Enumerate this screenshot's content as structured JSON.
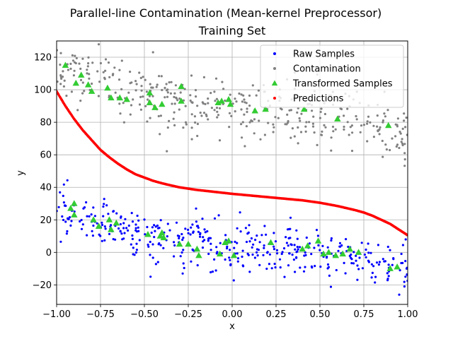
{
  "chart_data": {
    "type": "scatter",
    "title": "Parallel-line Contamination (Mean-kernel Preprocessor)",
    "subtitle": "Training Set",
    "xlabel": "x",
    "ylabel": "y",
    "xlim": [
      -1.0,
      1.0
    ],
    "ylim": [
      -32,
      130
    ],
    "xticks": [
      -1.0,
      -0.75,
      -0.5,
      -0.25,
      0.0,
      0.25,
      0.5,
      0.75,
      1.0
    ],
    "xtick_labels": [
      "−1.00",
      "−0.75",
      "−0.50",
      "−0.25",
      "0.00",
      "0.25",
      "0.50",
      "0.75",
      "1.00"
    ],
    "yticks": [
      -20,
      0,
      20,
      40,
      60,
      80,
      100,
      120
    ],
    "ytick_labels": [
      "−20",
      "0",
      "20",
      "40",
      "60",
      "80",
      "100",
      "120"
    ],
    "grid": true,
    "legend_position": "top-right",
    "series": [
      {
        "name": "Raw Samples",
        "color": "#0000ff",
        "marker": "dot",
        "model": {
          "points": 420,
          "trend_x": [
            -1.0,
            -0.75,
            -0.5,
            -0.25,
            0.0,
            0.25,
            0.5,
            0.75,
            1.0
          ],
          "trend_y": [
            26,
            18,
            12,
            7,
            3,
            1,
            -1,
            -4,
            -10
          ],
          "noise_sd": 8
        }
      },
      {
        "name": "Contamination",
        "color": "#808080",
        "marker": "dot",
        "model": {
          "points": 400,
          "trend_x": [
            -1.0,
            -0.75,
            -0.5,
            -0.25,
            0.0,
            0.25,
            0.5,
            0.75,
            1.0
          ],
          "trend_y": [
            115,
            102,
            97,
            92,
            89,
            86,
            84,
            82,
            75
          ],
          "noise_sd": 10
        }
      },
      {
        "name": "Transformed Samples",
        "color": "#33cc33",
        "marker": "triangle",
        "points": [
          {
            "x": -0.95,
            "y": 115
          },
          {
            "x": -0.89,
            "y": 104
          },
          {
            "x": -0.86,
            "y": 109
          },
          {
            "x": -0.82,
            "y": 103
          },
          {
            "x": -0.8,
            "y": 99
          },
          {
            "x": -0.71,
            "y": 101
          },
          {
            "x": -0.69,
            "y": 95
          },
          {
            "x": -0.64,
            "y": 95
          },
          {
            "x": -0.6,
            "y": 94
          },
          {
            "x": -0.47,
            "y": 98
          },
          {
            "x": -0.47,
            "y": 92
          },
          {
            "x": -0.44,
            "y": 89
          },
          {
            "x": -0.4,
            "y": 91
          },
          {
            "x": -0.29,
            "y": 102
          },
          {
            "x": -0.29,
            "y": 93
          },
          {
            "x": -0.08,
            "y": 92
          },
          {
            "x": -0.06,
            "y": 93
          },
          {
            "x": -0.02,
            "y": 94
          },
          {
            "x": -0.01,
            "y": 91
          },
          {
            "x": 0.13,
            "y": 87
          },
          {
            "x": 0.19,
            "y": 88
          },
          {
            "x": 0.41,
            "y": 88
          },
          {
            "x": 0.6,
            "y": 82
          },
          {
            "x": 0.89,
            "y": 78
          },
          {
            "x": -0.92,
            "y": 27
          },
          {
            "x": -0.9,
            "y": 30
          },
          {
            "x": -0.9,
            "y": 23
          },
          {
            "x": -0.79,
            "y": 20
          },
          {
            "x": -0.76,
            "y": 16
          },
          {
            "x": -0.7,
            "y": 20
          },
          {
            "x": -0.69,
            "y": 14
          },
          {
            "x": -0.66,
            "y": 18
          },
          {
            "x": -0.48,
            "y": 11
          },
          {
            "x": -0.41,
            "y": 10
          },
          {
            "x": -0.4,
            "y": 12
          },
          {
            "x": -0.39,
            "y": 9
          },
          {
            "x": -0.3,
            "y": 5
          },
          {
            "x": -0.25,
            "y": 5
          },
          {
            "x": -0.2,
            "y": 2
          },
          {
            "x": -0.19,
            "y": -2
          },
          {
            "x": -0.07,
            "y": -1
          },
          {
            "x": -0.04,
            "y": 6
          },
          {
            "x": -0.02,
            "y": 7
          },
          {
            "x": 0.01,
            "y": -2
          },
          {
            "x": 0.22,
            "y": 6
          },
          {
            "x": 0.4,
            "y": 2
          },
          {
            "x": 0.43,
            "y": 4
          },
          {
            "x": 0.49,
            "y": 7
          },
          {
            "x": 0.52,
            "y": -1
          },
          {
            "x": 0.55,
            "y": 0
          },
          {
            "x": 0.59,
            "y": -2
          },
          {
            "x": 0.63,
            "y": -1
          },
          {
            "x": 0.67,
            "y": 2
          },
          {
            "x": 0.72,
            "y": 0
          },
          {
            "x": 0.9,
            "y": -10
          },
          {
            "x": 0.94,
            "y": -9
          }
        ]
      },
      {
        "name": "Predictions",
        "color": "#ff0000",
        "marker": "curve",
        "points": [
          {
            "x": -1.0,
            "y": 99
          },
          {
            "x": -0.95,
            "y": 90
          },
          {
            "x": -0.9,
            "y": 82
          },
          {
            "x": -0.85,
            "y": 75
          },
          {
            "x": -0.8,
            "y": 69
          },
          {
            "x": -0.75,
            "y": 63
          },
          {
            "x": -0.7,
            "y": 58.5
          },
          {
            "x": -0.65,
            "y": 54.5
          },
          {
            "x": -0.6,
            "y": 51
          },
          {
            "x": -0.55,
            "y": 48
          },
          {
            "x": -0.5,
            "y": 46
          },
          {
            "x": -0.45,
            "y": 44
          },
          {
            "x": -0.4,
            "y": 42.5
          },
          {
            "x": -0.35,
            "y": 41.2
          },
          {
            "x": -0.3,
            "y": 40
          },
          {
            "x": -0.25,
            "y": 39.2
          },
          {
            "x": -0.2,
            "y": 38.4
          },
          {
            "x": -0.1,
            "y": 37.2
          },
          {
            "x": 0.0,
            "y": 36
          },
          {
            "x": 0.1,
            "y": 35
          },
          {
            "x": 0.2,
            "y": 34
          },
          {
            "x": 0.3,
            "y": 33
          },
          {
            "x": 0.4,
            "y": 32
          },
          {
            "x": 0.5,
            "y": 30.5
          },
          {
            "x": 0.6,
            "y": 28.5
          },
          {
            "x": 0.7,
            "y": 26
          },
          {
            "x": 0.75,
            "y": 24.5
          },
          {
            "x": 0.8,
            "y": 22.5
          },
          {
            "x": 0.85,
            "y": 20
          },
          {
            "x": 0.9,
            "y": 17.5
          },
          {
            "x": 0.95,
            "y": 14
          },
          {
            "x": 1.0,
            "y": 10.5
          }
        ]
      }
    ]
  },
  "colors": {
    "raw": "#0000ff",
    "contamination": "#808080",
    "transformed": "#33cc33",
    "predictions": "#ff0000",
    "grid": "#b0b0b0"
  }
}
